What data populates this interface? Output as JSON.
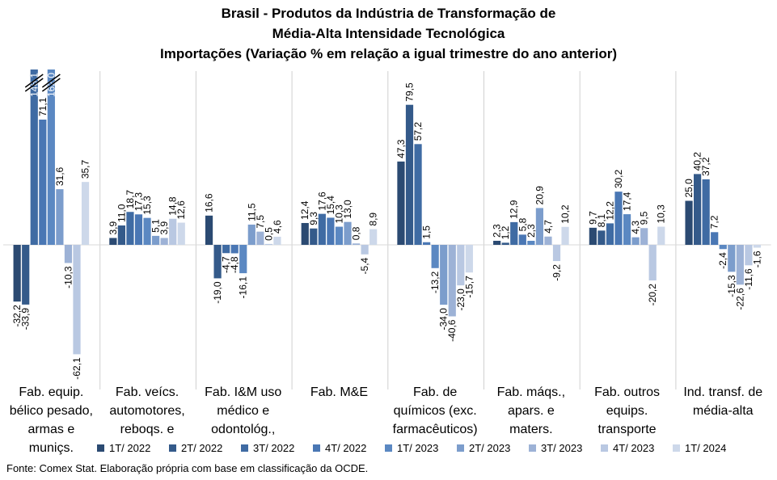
{
  "title_lines": [
    "Brasil - Produtos da Indústria de Transformação de",
    "Média-Alta Intensidade Tecnológica",
    "Importações (Variação % em relação a igual trimestre do ano anterior)"
  ],
  "source": "Fonte: Comex Stat. Elaboração própria com base em classificação da OCDE.",
  "chart_data": {
    "type": "bar",
    "title": "Brasil - Produtos da Indústria de Transformação de Média-Alta Intensidade Tecnológica Importações (Variação % em relação a igual trimestre do ano anterior)",
    "categories": [
      "Fab. equip. bélico pesado, armas e muniçs.",
      "Fab. veícs. automotores, reboqs. e",
      "Fab. I&M uso médico e odontológ.,",
      "Fab. M&E",
      "Fab. de químicos (exc. farmacêuticos)",
      "Fab. máqs., apars. e maters.",
      "Fab. outros equips. transporte",
      "Ind. transf. de média-alta"
    ],
    "category_lines": [
      [
        "Fab. equip.",
        "bélico pesado,",
        "armas e",
        "muniçs."
      ],
      [
        "Fab. veícs.",
        "automotores,",
        "reboqs. e"
      ],
      [
        "Fab. I&M uso",
        "médico e",
        "odontológ.,"
      ],
      [
        "Fab. M&E"
      ],
      [
        "Fab. de",
        "químicos (exc.",
        "farmacêuticos)"
      ],
      [
        "Fab. máqs.,",
        "apars. e",
        "maters."
      ],
      [
        "Fab. outros",
        "equips.",
        "transporte"
      ],
      [
        "Ind. transf. de",
        "média-alta"
      ]
    ],
    "series": [
      {
        "name": "1T/ 2022",
        "color": "#2b4a72",
        "values": [
          -32.2,
          3.9,
          16.6,
          12.4,
          47.3,
          2.3,
          9.7,
          25.0
        ]
      },
      {
        "name": "2T/ 2022",
        "color": "#345a8a",
        "values": [
          -33.9,
          11.0,
          -19.0,
          9.3,
          79.5,
          1.2,
          8.1,
          40.2
        ]
      },
      {
        "name": "3T/ 2022",
        "color": "#3f6ba3",
        "values": [
          146.1,
          18.7,
          -4.7,
          17.6,
          57.2,
          12.9,
          12.2,
          37.2
        ]
      },
      {
        "name": "4T/ 2022",
        "color": "#4a77b4",
        "values": [
          71.1,
          17.3,
          -4.8,
          15.4,
          1.5,
          5.8,
          30.2,
          7.2
        ]
      },
      {
        "name": "1T/ 2023",
        "color": "#5b88c2",
        "values": [
          162.0,
          15.3,
          -16.1,
          10.3,
          -13.2,
          2.3,
          17.4,
          -2.4
        ]
      },
      {
        "name": "2T/ 2023",
        "color": "#7c9dcc",
        "values": [
          31.6,
          5.1,
          11.5,
          13.0,
          -34.0,
          20.9,
          4.3,
          -15.3
        ]
      },
      {
        "name": "3T/ 2023",
        "color": "#9db2d6",
        "values": [
          -10.3,
          3.9,
          7.5,
          0.8,
          -40.6,
          4.7,
          9.5,
          -22.6
        ]
      },
      {
        "name": "4T/ 2023",
        "color": "#b9c8e2",
        "values": [
          -62.1,
          14.8,
          0.5,
          -5.4,
          -23.0,
          -9.2,
          -20.2,
          -11.6
        ]
      },
      {
        "name": "1T/ 2024",
        "color": "#cdd8ea",
        "values": [
          35.7,
          12.6,
          4.6,
          8.9,
          -15.7,
          10.2,
          10.3,
          -1.6
        ]
      }
    ],
    "axis_break_categories": [
      0
    ],
    "clipped_values_shown_at_axis_top": true,
    "grid": false,
    "legend_position": "bottom"
  }
}
